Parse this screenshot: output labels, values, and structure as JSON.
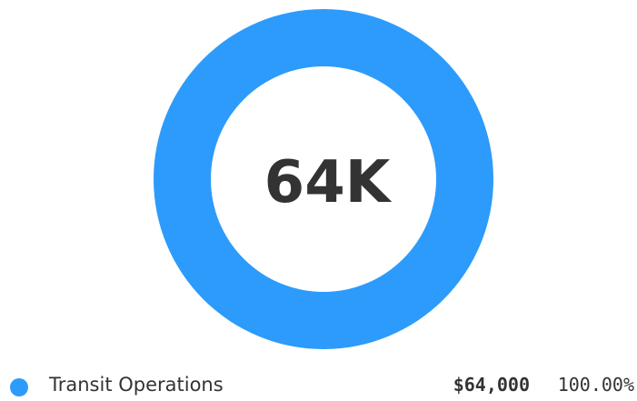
{
  "chart_data": {
    "type": "pie",
    "variant": "donut",
    "center_label": "64K",
    "slices": [
      {
        "label": "Transit Operations",
        "value": 64000,
        "value_text": "$64,000",
        "percent_text": "100.00%",
        "color": "#2d9bfb"
      }
    ],
    "legend_position": "bottom"
  }
}
